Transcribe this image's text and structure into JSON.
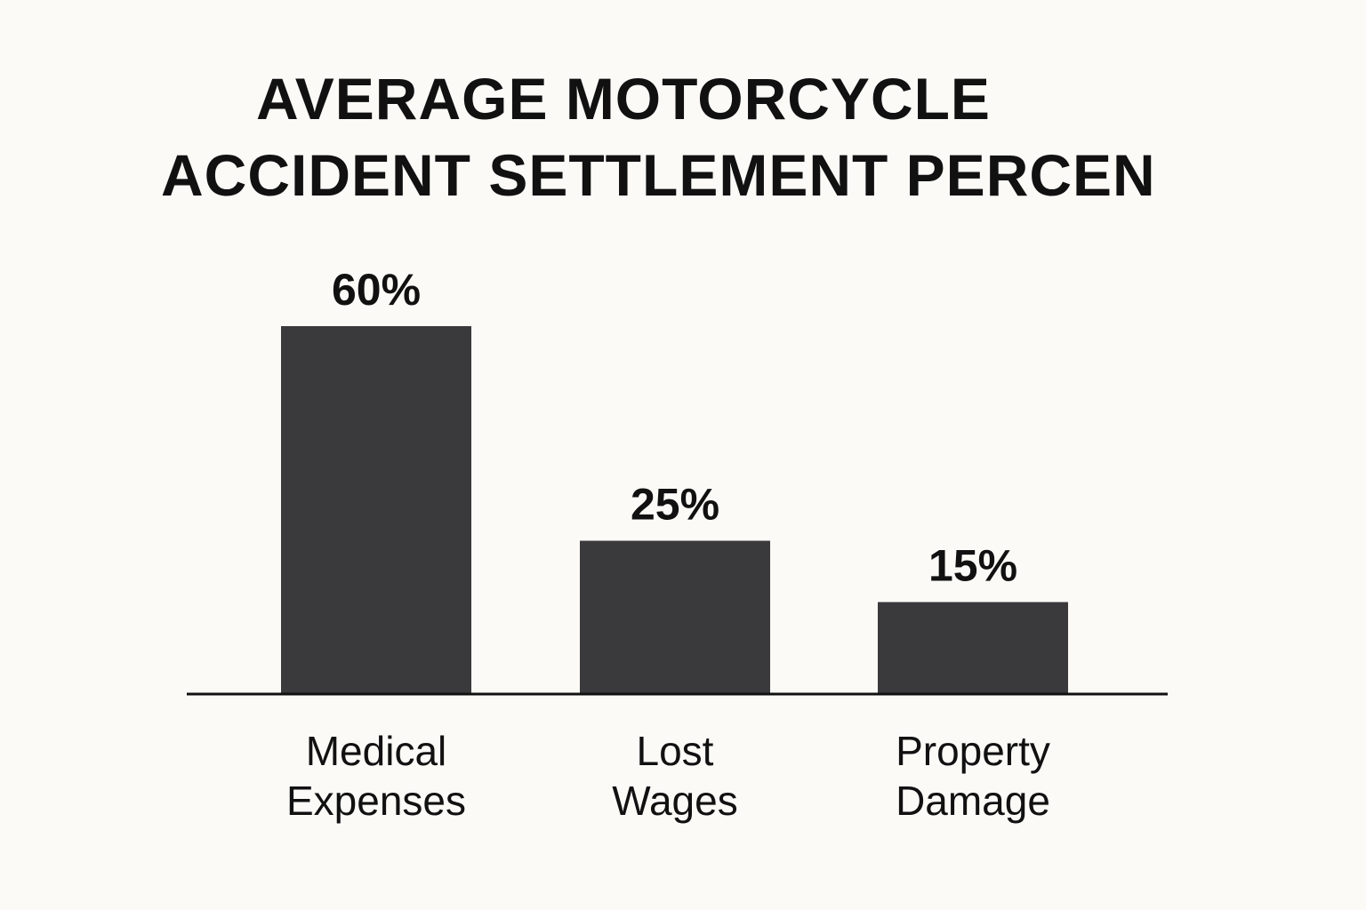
{
  "chart_data": {
    "type": "bar",
    "title_lines": [
      "AVERAGE MOTORCYCLE",
      "ACCIDENT SETTLEMENT PERCEN"
    ],
    "categories": [
      [
        "Medical",
        "Expenses"
      ],
      [
        "Lost",
        "Wages"
      ],
      [
        "Property",
        "Damage"
      ]
    ],
    "values": [
      60,
      25,
      15
    ],
    "value_labels": [
      "60%",
      "25%",
      "15%"
    ],
    "ylim": [
      0,
      60
    ],
    "grid": false,
    "legend": "none",
    "colors": {
      "bar": "#3a3a3d",
      "text": "#111111",
      "axis": "#111111",
      "background": "#fbfaf7"
    }
  }
}
